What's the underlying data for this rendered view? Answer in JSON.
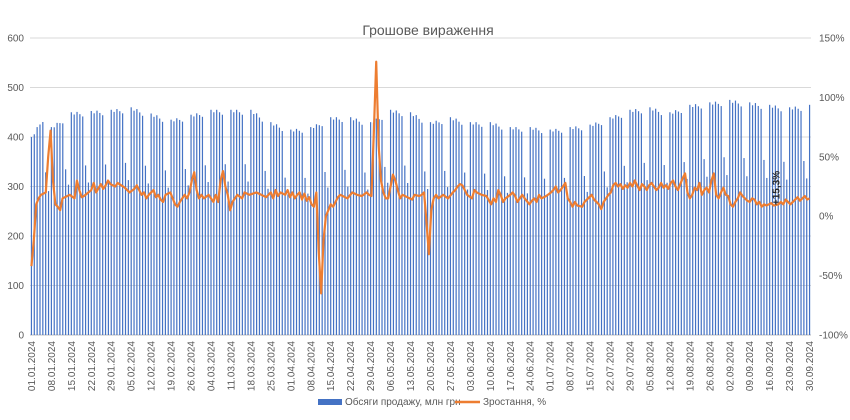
{
  "chart_data": {
    "type": "bar",
    "title": "Грошове вираження",
    "xlabel": "",
    "ylabel": "",
    "y_left": {
      "min": 0,
      "max": 600,
      "step": 100,
      "ticks": [
        "0",
        "100",
        "200",
        "300",
        "400",
        "500",
        "600"
      ]
    },
    "y_right": {
      "min": -100,
      "max": 150,
      "step": 50,
      "ticks": [
        "-100%",
        "-50%",
        "0%",
        "50%",
        "100%",
        "150%"
      ]
    },
    "x_tick_labels": [
      "01.01.2024",
      "08.01.2024",
      "15.01.2024",
      "22.01.2024",
      "29.01.2024",
      "05.02.2024",
      "12.02.2024",
      "19.02.2024",
      "26.02.2024",
      "04.03.2024",
      "11.03.2024",
      "18.03.2024",
      "25.03.2024",
      "01.04.2024",
      "08.04.2024",
      "15.04.2024",
      "22.04.2024",
      "29.04.2024",
      "06.05.2024",
      "13.05.2024",
      "20.05.2024",
      "27.05.2024",
      "03.06.2024",
      "10.06.2024",
      "17.06.2024",
      "24.06.2024",
      "01.07.2024",
      "08.07.2024",
      "15.07.2024",
      "22.07.2024",
      "29.07.2024",
      "05.08.2024",
      "12.08.2024",
      "19.08.2024",
      "26.08.2024",
      "02.09.2024",
      "09.09.2024",
      "16.09.2024",
      "23.09.2024",
      "30.09.2024"
    ],
    "num_days": 274,
    "grid": "horizontal",
    "legend_position": "bottom",
    "annotation": "+15,3%",
    "series": [
      {
        "name": "Обсяги продажу, млн грн",
        "type": "bar",
        "axis": "left",
        "color": "#4472c4",
        "weekday_pattern": [
          455,
          450,
          455,
          450,
          445,
          345,
          310
        ],
        "anchors": [
          [
            0,
            400
          ],
          [
            4,
            440
          ],
          [
            7,
            420
          ],
          [
            14,
            450
          ],
          [
            28,
            455
          ],
          [
            35,
            460
          ],
          [
            49,
            435
          ],
          [
            63,
            455
          ],
          [
            77,
            455
          ],
          [
            84,
            430
          ],
          [
            91,
            415
          ],
          [
            98,
            420
          ],
          [
            105,
            440
          ],
          [
            112,
            440
          ],
          [
            119,
            430
          ],
          [
            126,
            455
          ],
          [
            133,
            450
          ],
          [
            140,
            430
          ],
          [
            147,
            440
          ],
          [
            154,
            430
          ],
          [
            161,
            430
          ],
          [
            168,
            420
          ],
          [
            175,
            420
          ],
          [
            182,
            415
          ],
          [
            189,
            420
          ],
          [
            196,
            425
          ],
          [
            203,
            440
          ],
          [
            210,
            455
          ],
          [
            217,
            460
          ],
          [
            224,
            450
          ],
          [
            231,
            465
          ],
          [
            238,
            470
          ],
          [
            245,
            475
          ],
          [
            252,
            470
          ],
          [
            259,
            465
          ],
          [
            266,
            460
          ],
          [
            273,
            465
          ]
        ]
      },
      {
        "name": "Зростання, %",
        "type": "line",
        "axis": "right",
        "color": "#ed7d31",
        "anchors": [
          [
            0,
            -42
          ],
          [
            1,
            -20
          ],
          [
            2,
            10
          ],
          [
            3,
            15
          ],
          [
            4,
            18
          ],
          [
            6,
            20
          ],
          [
            7,
            50
          ],
          [
            8,
            72
          ],
          [
            9,
            30
          ],
          [
            10,
            10
          ],
          [
            11,
            8
          ],
          [
            12,
            5
          ],
          [
            13,
            15
          ],
          [
            16,
            18
          ],
          [
            18,
            15
          ],
          [
            19,
            30
          ],
          [
            20,
            22
          ],
          [
            21,
            16
          ],
          [
            22,
            17
          ],
          [
            25,
            22
          ],
          [
            26,
            28
          ],
          [
            27,
            20
          ],
          [
            29,
            27
          ],
          [
            30,
            23
          ],
          [
            31,
            26
          ],
          [
            32,
            30
          ],
          [
            33,
            27
          ],
          [
            35,
            25
          ],
          [
            36,
            28
          ],
          [
            39,
            24
          ],
          [
            41,
            20
          ],
          [
            43,
            23
          ],
          [
            44,
            26
          ],
          [
            45,
            22
          ],
          [
            46,
            18
          ],
          [
            47,
            20
          ],
          [
            48,
            15
          ],
          [
            49,
            18
          ],
          [
            51,
            22
          ],
          [
            52,
            16
          ],
          [
            53,
            18
          ],
          [
            54,
            14
          ],
          [
            55,
            12
          ],
          [
            56,
            18
          ],
          [
            58,
            20
          ],
          [
            59,
            15
          ],
          [
            60,
            10
          ],
          [
            61,
            8
          ],
          [
            62,
            12
          ],
          [
            64,
            18
          ],
          [
            65,
            15
          ],
          [
            66,
            20
          ],
          [
            67,
            30
          ],
          [
            68,
            37
          ],
          [
            69,
            22
          ],
          [
            70,
            15
          ],
          [
            71,
            18
          ],
          [
            72,
            15
          ],
          [
            74,
            18
          ],
          [
            76,
            12
          ],
          [
            77,
            18
          ],
          [
            78,
            12
          ],
          [
            79,
            30
          ],
          [
            80,
            38
          ],
          [
            81,
            25
          ],
          [
            82,
            18
          ],
          [
            83,
            5
          ],
          [
            84,
            12
          ],
          [
            86,
            18
          ],
          [
            88,
            15
          ],
          [
            89,
            20
          ],
          [
            91,
            18
          ],
          [
            94,
            20
          ],
          [
            96,
            18
          ],
          [
            98,
            16
          ],
          [
            100,
            20
          ],
          [
            101,
            15
          ],
          [
            102,
            22
          ],
          [
            103,
            17
          ],
          [
            104,
            20
          ],
          [
            106,
            18
          ],
          [
            107,
            22
          ],
          [
            108,
            16
          ],
          [
            109,
            20
          ],
          [
            110,
            15
          ],
          [
            111,
            18
          ],
          [
            112,
            20
          ],
          [
            113,
            14
          ],
          [
            114,
            19
          ],
          [
            115,
            13
          ],
          [
            116,
            16
          ],
          [
            117,
            10
          ],
          [
            118,
            8
          ],
          [
            119,
            20
          ],
          [
            120,
            -30
          ],
          [
            121,
            -65
          ],
          [
            122,
            -20
          ],
          [
            123,
            0
          ],
          [
            124,
            5
          ],
          [
            125,
            10
          ],
          [
            126,
            8
          ],
          [
            127,
            12
          ],
          [
            128,
            16
          ],
          [
            129,
            18
          ],
          [
            130,
            17
          ],
          [
            132,
            15
          ],
          [
            134,
            20
          ],
          [
            136,
            18
          ],
          [
            138,
            17
          ],
          [
            140,
            20
          ],
          [
            141,
            18
          ],
          [
            142,
            17
          ],
          [
            143,
            70
          ],
          [
            144,
            130
          ],
          [
            145,
            60
          ],
          [
            146,
            30
          ],
          [
            147,
            20
          ],
          [
            148,
            15
          ],
          [
            149,
            15
          ],
          [
            151,
            35
          ],
          [
            152,
            30
          ],
          [
            153,
            22
          ],
          [
            154,
            15
          ],
          [
            155,
            18
          ],
          [
            157,
            16
          ],
          [
            159,
            14
          ],
          [
            160,
            18
          ],
          [
            162,
            17
          ],
          [
            163,
            18
          ],
          [
            164,
            20
          ],
          [
            165,
            -5
          ],
          [
            166,
            -32
          ],
          [
            167,
            5
          ],
          [
            168,
            15
          ],
          [
            169,
            18
          ],
          [
            170,
            15
          ],
          [
            172,
            18
          ],
          [
            174,
            15
          ],
          [
            176,
            20
          ],
          [
            177,
            22
          ],
          [
            178,
            25
          ],
          [
            179,
            27
          ],
          [
            180,
            26
          ],
          [
            181,
            22
          ],
          [
            182,
            18
          ],
          [
            184,
            15
          ],
          [
            185,
            22
          ],
          [
            186,
            20
          ],
          [
            188,
            18
          ],
          [
            190,
            17
          ],
          [
            192,
            10
          ],
          [
            193,
            15
          ],
          [
            194,
            12
          ],
          [
            195,
            22
          ],
          [
            196,
            18
          ],
          [
            197,
            12
          ],
          [
            198,
            15
          ],
          [
            200,
            18
          ],
          [
            201,
            20
          ],
          [
            202,
            17
          ],
          [
            203,
            12
          ],
          [
            204,
            15
          ],
          [
            205,
            18
          ],
          [
            206,
            15
          ],
          [
            208,
            10
          ],
          [
            209,
            13
          ],
          [
            210,
            15
          ],
          [
            211,
            12
          ],
          [
            212,
            18
          ],
          [
            213,
            15
          ],
          [
            215,
            17
          ],
          [
            217,
            20
          ],
          [
            218,
            22
          ],
          [
            219,
            25
          ],
          [
            220,
            20
          ],
          [
            221,
            22
          ],
          [
            222,
            25
          ],
          [
            223,
            28
          ],
          [
            224,
            15
          ],
          [
            225,
            12
          ],
          [
            226,
            8
          ],
          [
            227,
            12
          ],
          [
            228,
            9
          ],
          [
            230,
            8
          ],
          [
            231,
            12
          ],
          [
            232,
            14
          ],
          [
            234,
            18
          ],
          [
            235,
            14
          ],
          [
            236,
            12
          ],
          [
            237,
            10
          ],
          [
            238,
            6
          ],
          [
            239,
            12
          ],
          [
            240,
            15
          ],
          [
            241,
            18
          ],
          [
            242,
            20
          ],
          [
            243,
            26
          ],
          [
            244,
            28
          ],
          [
            245,
            25
          ],
          [
            246,
            27
          ],
          [
            247,
            23
          ],
          [
            248,
            26
          ],
          [
            249,
            24
          ],
          [
            250,
            28
          ],
          [
            251,
            25
          ],
          [
            252,
            30
          ],
          [
            253,
            26
          ],
          [
            254,
            22
          ],
          [
            255,
            27
          ],
          [
            256,
            25
          ],
          [
            257,
            22
          ],
          [
            258,
            26
          ],
          [
            259,
            28
          ],
          [
            260,
            25
          ],
          [
            261,
            22
          ],
          [
            262,
            24
          ],
          [
            263,
            28
          ],
          [
            264,
            24
          ],
          [
            265,
            26
          ],
          [
            266,
            23
          ],
          [
            267,
            28
          ],
          [
            268,
            30
          ],
          [
            269,
            25
          ],
          [
            270,
            22
          ],
          [
            271,
            27
          ],
          [
            272,
            32
          ],
          [
            273,
            36
          ],
          [
            274,
            20
          ],
          [
            275,
            15
          ],
          [
            276,
            18
          ],
          [
            277,
            24
          ],
          [
            278,
            22
          ],
          [
            279,
            28
          ],
          [
            280,
            18
          ],
          [
            281,
            22
          ],
          [
            282,
            24
          ],
          [
            283,
            20
          ],
          [
            284,
            30
          ],
          [
            285,
            36
          ],
          [
            286,
            18
          ],
          [
            287,
            15
          ],
          [
            288,
            20
          ],
          [
            289,
            24
          ],
          [
            290,
            18
          ],
          [
            291,
            17
          ],
          [
            292,
            10
          ],
          [
            293,
            8
          ],
          [
            294,
            12
          ],
          [
            295,
            15
          ],
          [
            296,
            20
          ],
          [
            297,
            17
          ],
          [
            298,
            15
          ],
          [
            299,
            13
          ],
          [
            300,
            12
          ],
          [
            301,
            15
          ],
          [
            302,
            14
          ],
          [
            303,
            10
          ],
          [
            304,
            12
          ],
          [
            305,
            8
          ],
          [
            306,
            10
          ],
          [
            307,
            9
          ],
          [
            308,
            10
          ],
          [
            309,
            11
          ],
          [
            310,
            9
          ],
          [
            312,
            10
          ],
          [
            313,
            12
          ],
          [
            314,
            10
          ],
          [
            315,
            14
          ],
          [
            316,
            12
          ],
          [
            317,
            10
          ],
          [
            318,
            12
          ],
          [
            319,
            14
          ],
          [
            320,
            16
          ],
          [
            321,
            13
          ],
          [
            322,
            15
          ],
          [
            323,
            17
          ],
          [
            324,
            14
          ],
          [
            325,
            15
          ]
        ]
      }
    ]
  }
}
